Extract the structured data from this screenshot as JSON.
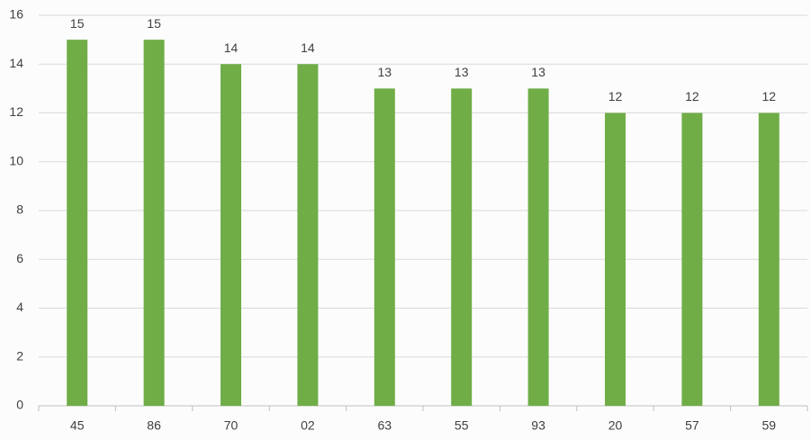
{
  "chart_data": {
    "type": "bar",
    "categories": [
      "45",
      "86",
      "70",
      "02",
      "63",
      "55",
      "93",
      "20",
      "57",
      "59"
    ],
    "values": [
      15,
      15,
      14,
      14,
      13,
      13,
      13,
      12,
      12,
      12
    ],
    "color": "#70ad47",
    "ylim": [
      0,
      16
    ],
    "yticks": [
      0,
      2,
      4,
      6,
      8,
      10,
      12,
      14,
      16
    ],
    "grid": true
  }
}
